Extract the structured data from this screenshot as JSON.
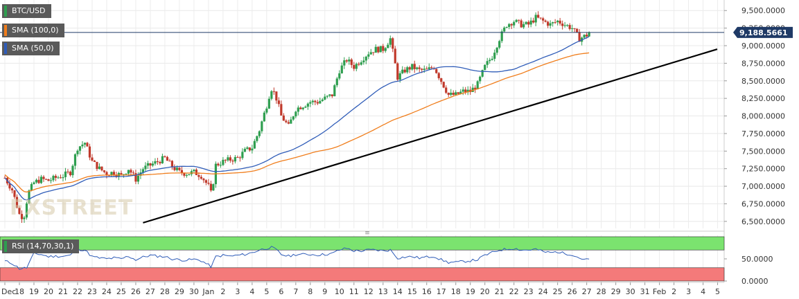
{
  "legend": {
    "symbol": "BTC/USD",
    "sma100": "SMA (100,0)",
    "sma50": "SMA (50,0)",
    "rsi": "RSI (14,70,30,1)",
    "colors": {
      "symbol": "#2e9e4f",
      "sma100": "#f07d1b",
      "sma50": "#2f5cb8",
      "rsi": "#2e9e4f"
    }
  },
  "watermark": "FXSTREET",
  "chart_data": [
    {
      "type": "candlestick",
      "symbol": "BTC/USD",
      "ylim": [
        6400,
        9650
      ],
      "y_ticks": [
        "6,500.0000",
        "6,750.0000",
        "7,000.0000",
        "7,250.0000",
        "7,500.0000",
        "7,750.0000",
        "8,000.0000",
        "8,250.0000",
        "8,500.0000",
        "8,750.0000",
        "9,000.0000",
        "9,250.0000",
        "9,500.0000"
      ],
      "y_tick_values": [
        6500,
        6750,
        7000,
        7250,
        7500,
        7750,
        8000,
        8250,
        8500,
        8750,
        9000,
        9250,
        9500
      ],
      "x_ticks": [
        "Dec",
        "18",
        "19",
        "20",
        "21",
        "22",
        "23",
        "24",
        "25",
        "26",
        "27",
        "28",
        "29",
        "30",
        "Jan",
        "2",
        "3",
        "4",
        "5",
        "6",
        "7",
        "8",
        "9",
        "10",
        "11",
        "12",
        "13",
        "14",
        "15",
        "16",
        "17",
        "18",
        "19",
        "20",
        "21",
        "22",
        "23",
        "24",
        "25",
        "26",
        "27",
        "28",
        "29",
        "30",
        "31",
        "Feb",
        "2",
        "3",
        "4",
        "5"
      ],
      "last_price": 9188.5661,
      "last_price_label": "9,188.5661",
      "colors": {
        "up": "#2e9e4f",
        "down": "#c0392b",
        "sma50": "#2f5cb8",
        "sma100": "#f07d1b",
        "trendline": "#000000"
      },
      "close_path": [
        [
          0,
          7120
        ],
        [
          0.5,
          6950
        ],
        [
          1,
          6600
        ],
        [
          1.3,
          6550
        ],
        [
          1.6,
          6900
        ],
        [
          2,
          7050
        ],
        [
          2.5,
          7100
        ],
        [
          3,
          7080
        ],
        [
          3.5,
          7120
        ],
        [
          4,
          7150
        ],
        [
          4.5,
          7200
        ],
        [
          5,
          7550
        ],
        [
          5.5,
          7620
        ],
        [
          6,
          7350
        ],
        [
          6.5,
          7250
        ],
        [
          7,
          7180
        ],
        [
          7.5,
          7200
        ],
        [
          8,
          7150
        ],
        [
          8.5,
          7250
        ],
        [
          9,
          7100
        ],
        [
          9.5,
          7250
        ],
        [
          10,
          7300
        ],
        [
          10.5,
          7350
        ],
        [
          11,
          7400
        ],
        [
          11.5,
          7280
        ],
        [
          12,
          7200
        ],
        [
          12.5,
          7180
        ],
        [
          13,
          7200
        ],
        [
          13.5,
          7150
        ],
        [
          14,
          7000
        ],
        [
          14.2,
          6880
        ],
        [
          14.5,
          7300
        ],
        [
          15,
          7350
        ],
        [
          15.5,
          7380
        ],
        [
          16,
          7400
        ],
        [
          16.5,
          7500
        ],
        [
          17,
          7550
        ],
        [
          17.5,
          7800
        ],
        [
          18,
          8150
        ],
        [
          18.3,
          8400
        ],
        [
          18.6,
          8300
        ],
        [
          19,
          8000
        ],
        [
          19.5,
          7850
        ],
        [
          20,
          8100
        ],
        [
          20.5,
          8150
        ],
        [
          21,
          8200
        ],
        [
          21.5,
          8200
        ],
        [
          22,
          8250
        ],
        [
          22.5,
          8300
        ],
        [
          23,
          8650
        ],
        [
          23.5,
          8800
        ],
        [
          24,
          8700
        ],
        [
          24.5,
          8800
        ],
        [
          25,
          8900
        ],
        [
          25.5,
          8950
        ],
        [
          26,
          8950
        ],
        [
          26.5,
          9100
        ],
        [
          27,
          8550
        ],
        [
          27.5,
          8650
        ],
        [
          28,
          8700
        ],
        [
          28.5,
          8650
        ],
        [
          29,
          8650
        ],
        [
          29.5,
          8700
        ],
        [
          30,
          8500
        ],
        [
          30.5,
          8300
        ],
        [
          31,
          8300
        ],
        [
          31.5,
          8350
        ],
        [
          32,
          8350
        ],
        [
          32.5,
          8450
        ],
        [
          33,
          8700
        ],
        [
          33.5,
          8850
        ],
        [
          34,
          9100
        ],
        [
          34.5,
          9300
        ],
        [
          35,
          9350
        ],
        [
          35.5,
          9300
        ],
        [
          36,
          9300
        ],
        [
          36.5,
          9400
        ],
        [
          37,
          9350
        ],
        [
          37.5,
          9300
        ],
        [
          38,
          9350
        ],
        [
          38.5,
          9300
        ],
        [
          39,
          9250
        ],
        [
          39.5,
          9100
        ],
        [
          40,
          9150
        ],
        [
          40.3,
          9188
        ]
      ]
    },
    {
      "type": "line",
      "name": "RSI (14,70,30,1)",
      "ylim": [
        0,
        100
      ],
      "y_ticks": [
        "0.0000",
        "50.0000"
      ],
      "y_tick_values": [
        0,
        50
      ],
      "overbought": 70,
      "oversold": 30,
      "colors": {
        "line": "#2f5cb8",
        "overbought_zone": "#7be36f",
        "oversold_zone": "#f47a7a"
      },
      "path": [
        [
          0,
          45
        ],
        [
          0.5,
          40
        ],
        [
          1,
          28
        ],
        [
          1.5,
          30
        ],
        [
          2,
          62
        ],
        [
          2.5,
          60
        ],
        [
          3,
          55
        ],
        [
          3.5,
          56
        ],
        [
          4,
          56
        ],
        [
          4.5,
          58
        ],
        [
          5,
          72
        ],
        [
          5.5,
          70
        ],
        [
          6,
          55
        ],
        [
          6.5,
          52
        ],
        [
          7,
          50
        ],
        [
          7.5,
          52
        ],
        [
          8,
          50
        ],
        [
          8.5,
          56
        ],
        [
          9,
          48
        ],
        [
          9.5,
          54
        ],
        [
          10,
          58
        ],
        [
          10.5,
          56
        ],
        [
          11,
          55
        ],
        [
          11.5,
          50
        ],
        [
          12,
          48
        ],
        [
          12.5,
          47
        ],
        [
          13,
          49
        ],
        [
          13.5,
          46
        ],
        [
          14,
          36
        ],
        [
          14.2,
          32
        ],
        [
          14.5,
          55
        ],
        [
          15,
          58
        ],
        [
          15.5,
          56
        ],
        [
          16,
          58
        ],
        [
          16.5,
          60
        ],
        [
          17,
          64
        ],
        [
          17.5,
          70
        ],
        [
          18,
          74
        ],
        [
          18.3,
          76
        ],
        [
          18.6,
          72
        ],
        [
          19,
          60
        ],
        [
          19.5,
          56
        ],
        [
          20,
          60
        ],
        [
          20.5,
          60
        ],
        [
          21,
          60
        ],
        [
          21.5,
          59
        ],
        [
          22,
          60
        ],
        [
          22.5,
          62
        ],
        [
          23,
          70
        ],
        [
          23.5,
          74
        ],
        [
          24,
          68
        ],
        [
          24.5,
          68
        ],
        [
          25,
          70
        ],
        [
          25.5,
          70
        ],
        [
          26,
          68
        ],
        [
          26.5,
          70
        ],
        [
          27,
          52
        ],
        [
          27.5,
          54
        ],
        [
          28,
          55
        ],
        [
          28.5,
          52
        ],
        [
          29,
          54
        ],
        [
          29.5,
          56
        ],
        [
          30,
          48
        ],
        [
          30.5,
          42
        ],
        [
          31,
          42
        ],
        [
          31.5,
          44
        ],
        [
          32,
          46
        ],
        [
          32.5,
          48
        ],
        [
          33,
          58
        ],
        [
          33.5,
          64
        ],
        [
          34,
          70
        ],
        [
          34.5,
          72
        ],
        [
          35,
          74
        ],
        [
          35.5,
          70
        ],
        [
          36,
          70
        ],
        [
          36.5,
          72
        ],
        [
          37,
          66
        ],
        [
          37.5,
          64
        ],
        [
          38,
          66
        ],
        [
          38.5,
          62
        ],
        [
          39,
          60
        ],
        [
          39.5,
          52
        ],
        [
          40,
          48
        ],
        [
          40.3,
          50
        ]
      ]
    }
  ]
}
